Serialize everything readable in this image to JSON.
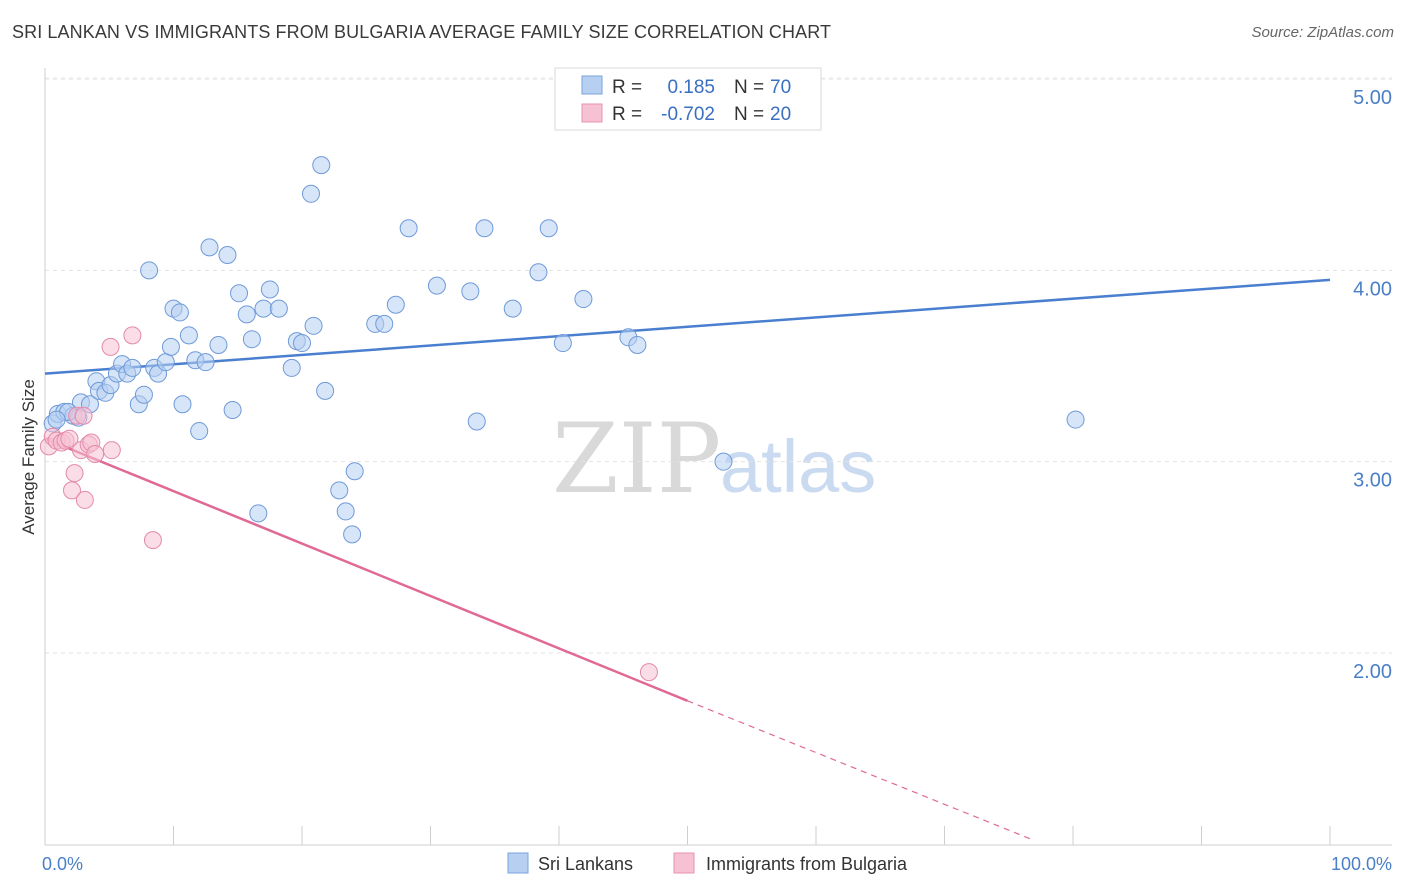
{
  "header": {
    "title": "SRI LANKAN VS IMMIGRANTS FROM BULGARIA AVERAGE FAMILY SIZE CORRELATION CHART",
    "source": "Source: ZipAtlas.com"
  },
  "watermark": {
    "zip": "ZIP",
    "atlas": "atlas"
  },
  "legend": {
    "rows": [
      {
        "r_label": "R =",
        "r_value": "0.185",
        "n_label": "N =",
        "n_value": "70"
      },
      {
        "r_label": "R =",
        "r_value": "-0.702",
        "n_label": "N =",
        "n_value": "20"
      }
    ]
  },
  "colors": {
    "blue": "#4a7fd0",
    "pink": "#e06a95",
    "blue_fill": "#b7d0f2",
    "pink_fill": "#f6c1d2",
    "axis_text": "#4a7fc8"
  },
  "chart_data": {
    "type": "scatter",
    "title": "SRI LANKAN VS IMMIGRANTS FROM BULGARIA AVERAGE FAMILY SIZE CORRELATION CHART",
    "xlabel": "",
    "ylabel": "Average Family Size",
    "xlim": [
      0,
      100
    ],
    "ylim": [
      1.0,
      5.1
    ],
    "x_tick_labels": [
      "0.0%",
      "100.0%"
    ],
    "y_ticks": [
      2.0,
      3.0,
      4.0,
      5.0
    ],
    "y_tick_labels": [
      "2.00",
      "3.00",
      "4.00",
      "5.00"
    ],
    "legend_position": "top-center",
    "series": [
      {
        "name": "Sri Lankans",
        "trend": {
          "x": [
            0,
            100
          ],
          "y": [
            3.46,
            3.95
          ]
        },
        "points": [
          {
            "x": 0.6,
            "y": 3.2
          },
          {
            "x": 1.0,
            "y": 3.25
          },
          {
            "x": 1.5,
            "y": 3.26
          },
          {
            "x": 2.2,
            "y": 3.24
          },
          {
            "x": 2.6,
            "y": 3.23
          },
          {
            "x": 2.8,
            "y": 3.31
          },
          {
            "x": 3.5,
            "y": 3.3
          },
          {
            "x": 4.0,
            "y": 3.42
          },
          {
            "x": 4.2,
            "y": 3.37
          },
          {
            "x": 4.7,
            "y": 3.36
          },
          {
            "x": 5.1,
            "y": 3.4
          },
          {
            "x": 5.6,
            "y": 3.46
          },
          {
            "x": 6.0,
            "y": 3.51
          },
          {
            "x": 6.4,
            "y": 3.46
          },
          {
            "x": 6.8,
            "y": 3.49
          },
          {
            "x": 7.3,
            "y": 3.3
          },
          {
            "x": 7.7,
            "y": 3.35
          },
          {
            "x": 8.1,
            "y": 4.0
          },
          {
            "x": 8.5,
            "y": 3.49
          },
          {
            "x": 8.8,
            "y": 3.46
          },
          {
            "x": 9.4,
            "y": 3.52
          },
          {
            "x": 9.8,
            "y": 3.6
          },
          {
            "x": 10.0,
            "y": 3.8
          },
          {
            "x": 10.5,
            "y": 3.78
          },
          {
            "x": 10.7,
            "y": 3.3
          },
          {
            "x": 11.2,
            "y": 3.66
          },
          {
            "x": 11.7,
            "y": 3.53
          },
          {
            "x": 12.0,
            "y": 3.16
          },
          {
            "x": 12.5,
            "y": 3.52
          },
          {
            "x": 12.8,
            "y": 4.12
          },
          {
            "x": 13.5,
            "y": 3.61
          },
          {
            "x": 14.2,
            "y": 4.08
          },
          {
            "x": 14.6,
            "y": 3.27
          },
          {
            "x": 15.1,
            "y": 3.88
          },
          {
            "x": 15.7,
            "y": 3.77
          },
          {
            "x": 16.1,
            "y": 3.64
          },
          {
            "x": 16.6,
            "y": 2.73
          },
          {
            "x": 17.0,
            "y": 3.8
          },
          {
            "x": 17.5,
            "y": 3.9
          },
          {
            "x": 18.2,
            "y": 3.8
          },
          {
            "x": 19.2,
            "y": 3.49
          },
          {
            "x": 19.6,
            "y": 3.63
          },
          {
            "x": 20.0,
            "y": 3.62
          },
          {
            "x": 20.7,
            "y": 4.4
          },
          {
            "x": 20.9,
            "y": 3.71
          },
          {
            "x": 21.5,
            "y": 4.55
          },
          {
            "x": 21.8,
            "y": 3.37
          },
          {
            "x": 22.9,
            "y": 2.85
          },
          {
            "x": 23.4,
            "y": 2.74
          },
          {
            "x": 23.9,
            "y": 2.62
          },
          {
            "x": 24.1,
            "y": 2.95
          },
          {
            "x": 25.7,
            "y": 3.72
          },
          {
            "x": 26.4,
            "y": 3.72
          },
          {
            "x": 27.3,
            "y": 3.82
          },
          {
            "x": 28.3,
            "y": 4.22
          },
          {
            "x": 30.5,
            "y": 3.92
          },
          {
            "x": 33.1,
            "y": 3.89
          },
          {
            "x": 33.6,
            "y": 3.21
          },
          {
            "x": 34.2,
            "y": 4.22
          },
          {
            "x": 36.4,
            "y": 3.8
          },
          {
            "x": 38.4,
            "y": 3.99
          },
          {
            "x": 39.2,
            "y": 4.22
          },
          {
            "x": 40.3,
            "y": 3.62
          },
          {
            "x": 41.9,
            "y": 3.85
          },
          {
            "x": 45.4,
            "y": 3.65
          },
          {
            "x": 46.1,
            "y": 3.61
          },
          {
            "x": 52.8,
            "y": 3.0
          },
          {
            "x": 80.2,
            "y": 3.22
          },
          {
            "x": 1.8,
            "y": 3.26
          },
          {
            "x": 0.9,
            "y": 3.22
          }
        ]
      },
      {
        "name": "Immigrants from Bulgaria",
        "trend": {
          "x": [
            0,
            50
          ],
          "y": [
            3.12,
            1.75
          ]
        },
        "trend_dashed": {
          "x": [
            50,
            77
          ],
          "y": [
            1.75,
            1.02
          ]
        },
        "points": [
          {
            "x": 0.3,
            "y": 3.08
          },
          {
            "x": 0.6,
            "y": 3.13
          },
          {
            "x": 0.9,
            "y": 3.11
          },
          {
            "x": 1.3,
            "y": 3.1
          },
          {
            "x": 1.6,
            "y": 3.11
          },
          {
            "x": 1.9,
            "y": 3.12
          },
          {
            "x": 2.1,
            "y": 2.85
          },
          {
            "x": 2.3,
            "y": 2.94
          },
          {
            "x": 2.5,
            "y": 3.24
          },
          {
            "x": 2.8,
            "y": 3.06
          },
          {
            "x": 3.0,
            "y": 3.24
          },
          {
            "x": 3.1,
            "y": 2.8
          },
          {
            "x": 3.4,
            "y": 3.09
          },
          {
            "x": 3.6,
            "y": 3.1
          },
          {
            "x": 3.9,
            "y": 3.04
          },
          {
            "x": 5.1,
            "y": 3.6
          },
          {
            "x": 5.2,
            "y": 3.06
          },
          {
            "x": 6.8,
            "y": 3.66
          },
          {
            "x": 8.4,
            "y": 2.59
          },
          {
            "x": 47.0,
            "y": 1.9
          }
        ]
      }
    ]
  },
  "bottom_legend": {
    "items": [
      "Sri Lankans",
      "Immigrants from Bulgaria"
    ]
  }
}
